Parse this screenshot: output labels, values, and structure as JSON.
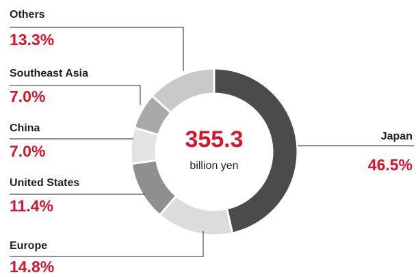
{
  "chart_data": {
    "type": "donut",
    "categories": [
      "Japan",
      "Europe",
      "United States",
      "China",
      "Southeast Asia",
      "Others"
    ],
    "values": [
      46.5,
      14.8,
      11.4,
      7.0,
      7.0,
      13.3
    ],
    "value_labels": [
      "46.5%",
      "14.8%",
      "11.4%",
      "7.0%",
      "7.0%",
      "13.3%"
    ],
    "colors": [
      "#4b4b4b",
      "#dcdcdc",
      "#8f8f8f",
      "#e3e3e3",
      "#a9a9a9",
      "#c9c9c9"
    ],
    "center_value": 355.3,
    "center_label": "billion yen"
  }
}
